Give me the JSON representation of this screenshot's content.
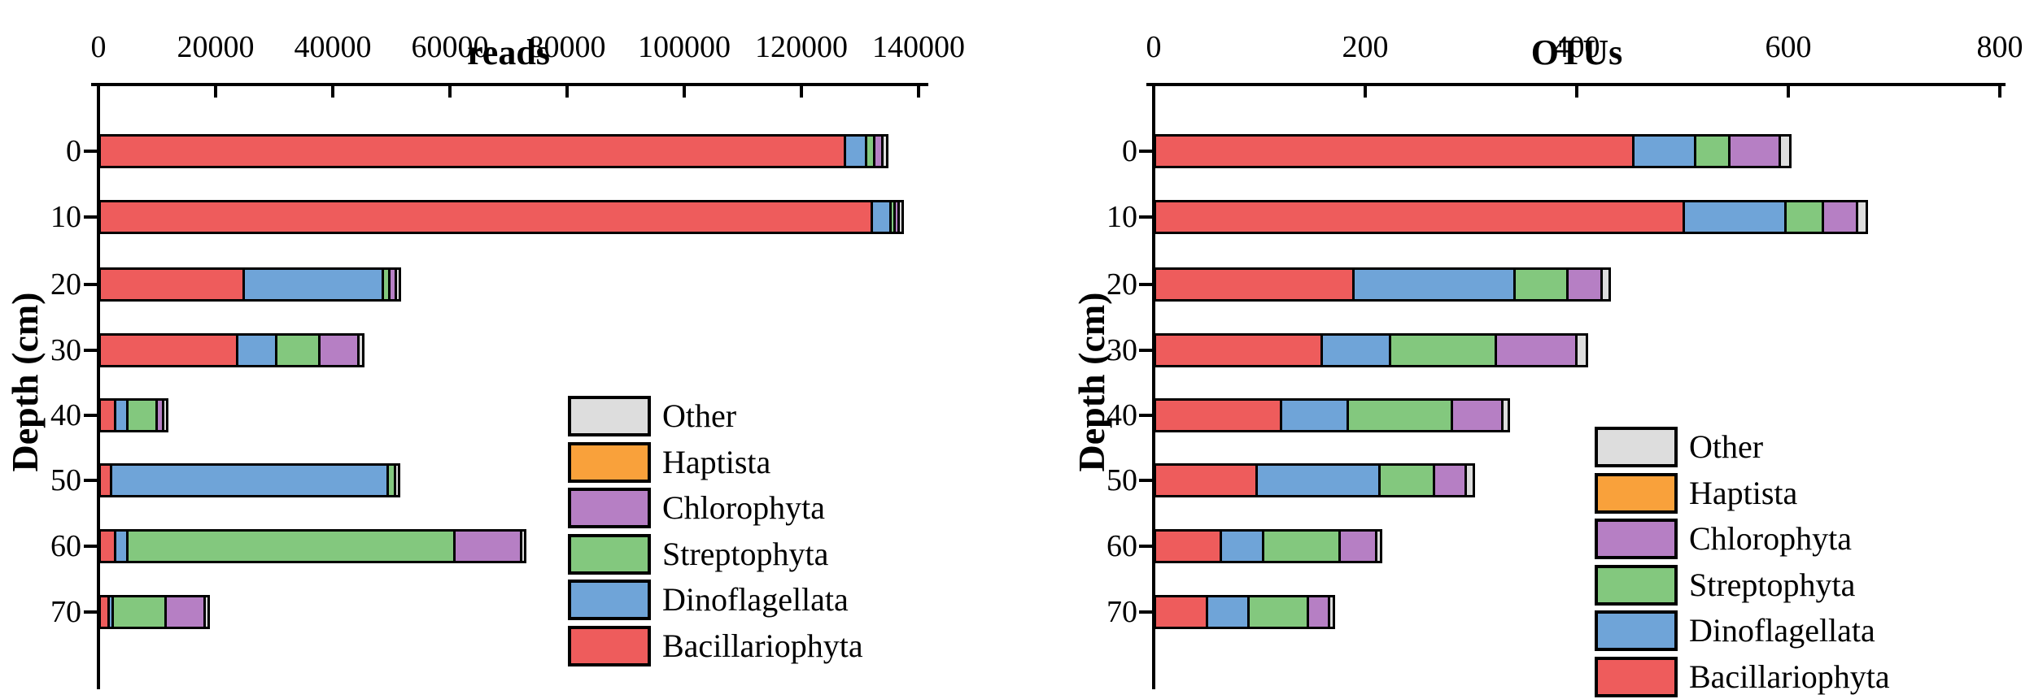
{
  "figure": {
    "depth_axis_label": "Depth (cm)",
    "background_color": "#FFFFFF",
    "outline_color": "#000000"
  },
  "legend": [
    {
      "label": "Other",
      "color": "#DDDDDD"
    },
    {
      "label": "Haptista",
      "color": "#F9A13B"
    },
    {
      "label": "Chlorophyta",
      "color": "#B67FC4"
    },
    {
      "label": "Streptophyta",
      "color": "#83C87E"
    },
    {
      "label": "Dinoflagellata",
      "color": "#6FA4D8"
    },
    {
      "label": "Bacillariophyta",
      "color": "#EE5C5C"
    }
  ],
  "chart_data": [
    {
      "type": "bar",
      "subtype": "horizontal-stacked",
      "title": "reads",
      "ylabel": "Depth (cm)",
      "categories": [
        "0",
        "10",
        "20",
        "30",
        "40",
        "50",
        "60",
        "70"
      ],
      "xlim": [
        0,
        140000
      ],
      "xticks": [
        0,
        20000,
        40000,
        60000,
        80000,
        100000,
        120000,
        140000
      ],
      "xtick_labels": [
        "0",
        "20000",
        "40000",
        "60000",
        "80000",
        "100000",
        "120000",
        "140000"
      ],
      "legend_position": "inside-right",
      "grid": false,
      "stack_order": [
        "Bacillariophyta",
        "Dinoflagellata",
        "Streptophyta",
        "Chlorophyta",
        "Haptista",
        "Other"
      ],
      "series": [
        {
          "name": "Bacillariophyta",
          "values": [
            126800,
            131400,
            24200,
            23000,
            2200,
            1500,
            2200,
            1100
          ]
        },
        {
          "name": "Dinoflagellata",
          "values": [
            3200,
            2800,
            23300,
            6200,
            1600,
            46800,
            1600,
            200
          ]
        },
        {
          "name": "Streptophyta",
          "values": [
            950,
            300,
            650,
            7000,
            4600,
            800,
            55400,
            8600
          ]
        },
        {
          "name": "Chlorophyta",
          "values": [
            950,
            250,
            650,
            6200,
            700,
            0,
            11000,
            6200
          ]
        },
        {
          "name": "Haptista",
          "values": [
            0,
            0,
            0,
            0,
            0,
            0,
            0,
            0
          ]
        },
        {
          "name": "Other",
          "values": [
            350,
            300,
            300,
            400,
            200,
            200,
            200,
            200
          ]
        }
      ]
    },
    {
      "type": "bar",
      "subtype": "horizontal-stacked",
      "title": "OTUs",
      "ylabel": "Depth (cm)",
      "categories": [
        "0",
        "10",
        "20",
        "30",
        "40",
        "50",
        "60",
        "70"
      ],
      "xlim": [
        0,
        800
      ],
      "xticks": [
        0,
        200,
        400,
        600,
        800
      ],
      "xtick_labels": [
        "0",
        "200",
        "400",
        "600",
        "800"
      ],
      "legend_position": "inside-right",
      "grid": false,
      "stack_order": [
        "Bacillariophyta",
        "Dinoflagellata",
        "Streptophyta",
        "Chlorophyta",
        "Haptista",
        "Other"
      ],
      "series": [
        {
          "name": "Bacillariophyta",
          "values": [
            450,
            498,
            185,
            155,
            117,
            94,
            60,
            47
          ]
        },
        {
          "name": "Dinoflagellata",
          "values": [
            56,
            94,
            150,
            62,
            61,
            114,
            38,
            37
          ]
        },
        {
          "name": "Streptophyta",
          "values": [
            30,
            33,
            48,
            98,
            96,
            49,
            70,
            54
          ]
        },
        {
          "name": "Chlorophyta",
          "values": [
            45,
            30,
            30,
            74,
            45,
            28,
            32,
            18
          ]
        },
        {
          "name": "Haptista",
          "values": [
            0,
            0,
            0,
            0,
            0,
            0,
            0,
            0
          ]
        },
        {
          "name": "Other",
          "values": [
            8,
            7,
            5,
            8,
            4,
            5,
            2,
            2
          ]
        }
      ]
    }
  ]
}
